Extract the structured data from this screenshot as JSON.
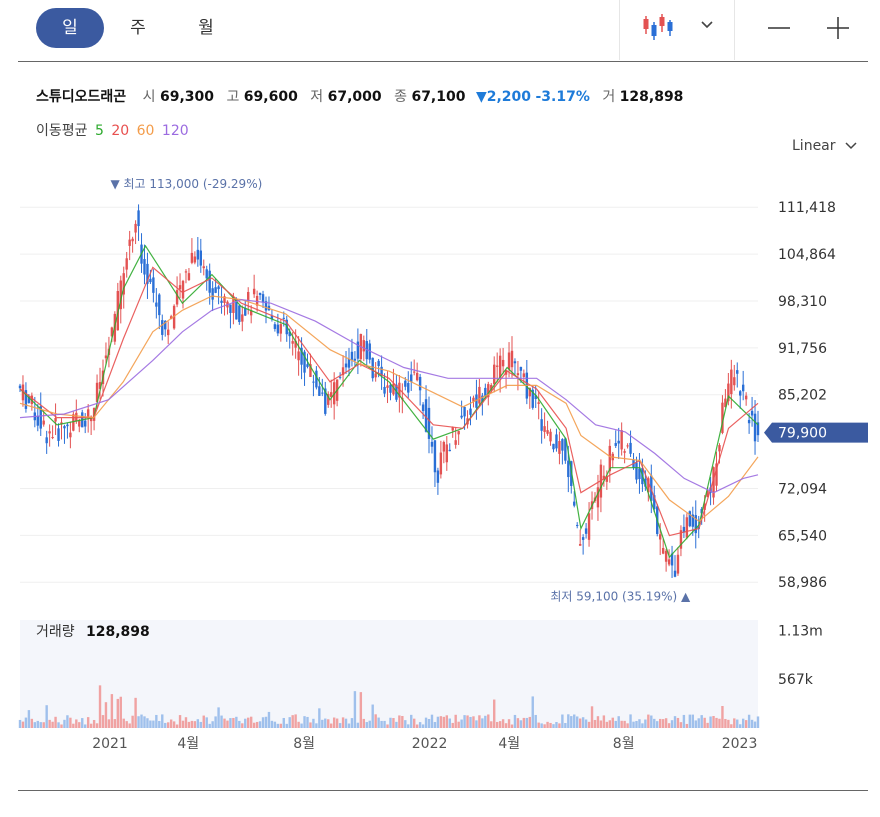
{
  "period_tabs": [
    {
      "label": "일",
      "active": true
    },
    {
      "label": "주",
      "active": false
    },
    {
      "label": "월",
      "active": false
    }
  ],
  "toolbar": {
    "chart_type_icon": "candlestick-icon",
    "dropdown_icon": "chevron-down-icon",
    "zoom_out_icon": "minus-icon",
    "zoom_in_icon": "plus-icon"
  },
  "stock": {
    "name": "스튜디오드래곤",
    "open_label": "시",
    "open": "69,300",
    "high_label": "고",
    "high": "69,600",
    "low_label": "저",
    "low": "67,000",
    "close_label": "종",
    "close": "67,100",
    "change": "2,200",
    "change_pct": "-3.17%",
    "volume_label": "거",
    "volume": "128,898"
  },
  "moving_average": {
    "label": "이동평균",
    "periods": [
      {
        "value": "5",
        "color": "#2eaa2e"
      },
      {
        "value": "20",
        "color": "#e8504f"
      },
      {
        "value": "60",
        "color": "#f39c4a"
      },
      {
        "value": "120",
        "color": "#9b6be0"
      }
    ]
  },
  "scale_option": "Linear",
  "colors": {
    "up": "#e35252",
    "down": "#2a6fd6",
    "accent": "#3b5aa0",
    "grid": "#efefef"
  },
  "chart_data": {
    "type": "candlestick",
    "ylim": [
      56500,
      115500
    ],
    "yticks": [
      111418,
      104864,
      98310,
      91756,
      85202,
      72094,
      65540,
      58986
    ],
    "ytick_labels": [
      "111,418",
      "104,864",
      "98,310",
      "91,756",
      "85,202",
      "72,094",
      "65,540",
      "58,986"
    ],
    "x_range": [
      0,
      100
    ],
    "x_ticks": [
      {
        "x": 12.2,
        "label": "2021"
      },
      {
        "x": 22.8,
        "label": "4월"
      },
      {
        "x": 38.5,
        "label": "8월"
      },
      {
        "x": 55.5,
        "label": "2022"
      },
      {
        "x": 66.3,
        "label": "4월"
      },
      {
        "x": 81.8,
        "label": "8월"
      },
      {
        "x": 97.5,
        "label": "2023"
      }
    ],
    "price_path": [
      [
        0,
        86500
      ],
      [
        2,
        83500
      ],
      [
        4,
        80000
      ],
      [
        6,
        80500
      ],
      [
        8,
        81500
      ],
      [
        10,
        82500
      ],
      [
        11,
        86000
      ],
      [
        12,
        90000
      ],
      [
        13,
        94500
      ],
      [
        14,
        100000
      ],
      [
        15,
        106000
      ],
      [
        16,
        110000
      ],
      [
        17,
        104000
      ],
      [
        18,
        101000
      ],
      [
        19,
        97500
      ],
      [
        20,
        94000
      ],
      [
        21,
        96500
      ],
      [
        22,
        99000
      ],
      [
        24,
        106000
      ],
      [
        25,
        103500
      ],
      [
        26,
        101000
      ],
      [
        28,
        98000
      ],
      [
        30,
        97000
      ],
      [
        32,
        98500
      ],
      [
        34,
        96500
      ],
      [
        36,
        94500
      ],
      [
        38,
        91000
      ],
      [
        40,
        88000
      ],
      [
        42,
        83500
      ],
      [
        43,
        85500
      ],
      [
        44,
        88000
      ],
      [
        46,
        91500
      ],
      [
        47,
        93500
      ],
      [
        48,
        89000
      ],
      [
        50,
        86500
      ],
      [
        52,
        86000
      ],
      [
        54,
        87500
      ],
      [
        55,
        84000
      ],
      [
        56,
        78500
      ],
      [
        57,
        74500
      ],
      [
        58,
        77500
      ],
      [
        60,
        81500
      ],
      [
        62,
        84000
      ],
      [
        64,
        87500
      ],
      [
        66,
        89500
      ],
      [
        67,
        90500
      ],
      [
        68,
        88000
      ],
      [
        70,
        84500
      ],
      [
        72,
        79000
      ],
      [
        73,
        77500
      ],
      [
        74,
        79000
      ],
      [
        75,
        72500
      ],
      [
        76,
        65000
      ],
      [
        77,
        66000
      ],
      [
        78,
        70000
      ],
      [
        79,
        73500
      ],
      [
        80,
        75500
      ],
      [
        81,
        79000
      ],
      [
        82,
        78500
      ],
      [
        84,
        74500
      ],
      [
        86,
        71500
      ],
      [
        87,
        64500
      ],
      [
        88,
        62500
      ],
      [
        89,
        60500
      ],
      [
        90,
        66500
      ],
      [
        91,
        67500
      ],
      [
        92,
        67000
      ],
      [
        93,
        69500
      ],
      [
        94,
        72000
      ],
      [
        95,
        77500
      ],
      [
        96,
        86000
      ],
      [
        97,
        88000
      ],
      [
        98,
        86500
      ],
      [
        99,
        82500
      ],
      [
        100,
        80000
      ]
    ],
    "ma_series": [
      {
        "name": "5",
        "color": "#2eaa2e",
        "points": [
          [
            0,
            86000
          ],
          [
            5,
            81000
          ],
          [
            10,
            82000
          ],
          [
            14,
            100000
          ],
          [
            17,
            106000
          ],
          [
            22,
            98000
          ],
          [
            26,
            102000
          ],
          [
            30,
            97500
          ],
          [
            36,
            95000
          ],
          [
            42,
            84500
          ],
          [
            46,
            90000
          ],
          [
            50,
            87000
          ],
          [
            56,
            79000
          ],
          [
            60,
            80500
          ],
          [
            66,
            89000
          ],
          [
            70,
            85000
          ],
          [
            74,
            79000
          ],
          [
            76,
            66500
          ],
          [
            80,
            75000
          ],
          [
            84,
            75000
          ],
          [
            88,
            62500
          ],
          [
            92,
            67000
          ],
          [
            96,
            85000
          ],
          [
            100,
            81000
          ]
        ]
      },
      {
        "name": "20",
        "color": "#e8504f",
        "points": [
          [
            0,
            86000
          ],
          [
            5,
            82000
          ],
          [
            10,
            82000
          ],
          [
            14,
            93000
          ],
          [
            18,
            103000
          ],
          [
            22,
            99500
          ],
          [
            26,
            101500
          ],
          [
            30,
            98000
          ],
          [
            36,
            95500
          ],
          [
            42,
            87000
          ],
          [
            46,
            89500
          ],
          [
            50,
            87500
          ],
          [
            56,
            81000
          ],
          [
            60,
            80500
          ],
          [
            66,
            88500
          ],
          [
            70,
            86000
          ],
          [
            74,
            80500
          ],
          [
            76,
            71500
          ],
          [
            80,
            74000
          ],
          [
            84,
            76000
          ],
          [
            88,
            65500
          ],
          [
            92,
            66500
          ],
          [
            96,
            80500
          ],
          [
            100,
            84000
          ]
        ]
      },
      {
        "name": "60",
        "color": "#f39c4a",
        "points": [
          [
            0,
            84000
          ],
          [
            5,
            82500
          ],
          [
            10,
            82000
          ],
          [
            14,
            87000
          ],
          [
            18,
            94000
          ],
          [
            22,
            97000
          ],
          [
            26,
            99000
          ],
          [
            30,
            98500
          ],
          [
            36,
            96500
          ],
          [
            42,
            91500
          ],
          [
            46,
            89500
          ],
          [
            50,
            88500
          ],
          [
            56,
            85500
          ],
          [
            60,
            83500
          ],
          [
            66,
            86500
          ],
          [
            70,
            86500
          ],
          [
            74,
            84000
          ],
          [
            76,
            79500
          ],
          [
            80,
            76500
          ],
          [
            84,
            76000
          ],
          [
            88,
            70500
          ],
          [
            92,
            67500
          ],
          [
            96,
            71000
          ],
          [
            100,
            76500
          ]
        ]
      },
      {
        "name": "120",
        "color": "#9b6be0",
        "points": [
          [
            0,
            82000
          ],
          [
            6,
            82500
          ],
          [
            12,
            84500
          ],
          [
            18,
            90000
          ],
          [
            22,
            94000
          ],
          [
            26,
            97000
          ],
          [
            30,
            98500
          ],
          [
            34,
            98000
          ],
          [
            40,
            95500
          ],
          [
            46,
            92000
          ],
          [
            52,
            89000
          ],
          [
            58,
            87500
          ],
          [
            64,
            87500
          ],
          [
            70,
            87500
          ],
          [
            74,
            84500
          ],
          [
            78,
            81000
          ],
          [
            82,
            80000
          ],
          [
            86,
            77000
          ],
          [
            90,
            73500
          ],
          [
            94,
            71500
          ],
          [
            98,
            73500
          ],
          [
            100,
            74000
          ]
        ]
      }
    ],
    "high_marker": {
      "label": "최고",
      "value": "113,000 (-29.29%)",
      "x": 12.8,
      "y": 113000
    },
    "low_marker": {
      "label": "최저",
      "value": "59,100 (35.19%)",
      "x": 88.8,
      "y": 59100
    },
    "current_price": {
      "label": "79,900",
      "value": 79900
    },
    "volume_panel": {
      "label": "거래량",
      "value": "128,898",
      "ytick_labels": [
        "1.13m",
        "567k"
      ],
      "yticks": [
        1130000,
        567000
      ],
      "ymax": 1250000
    }
  }
}
